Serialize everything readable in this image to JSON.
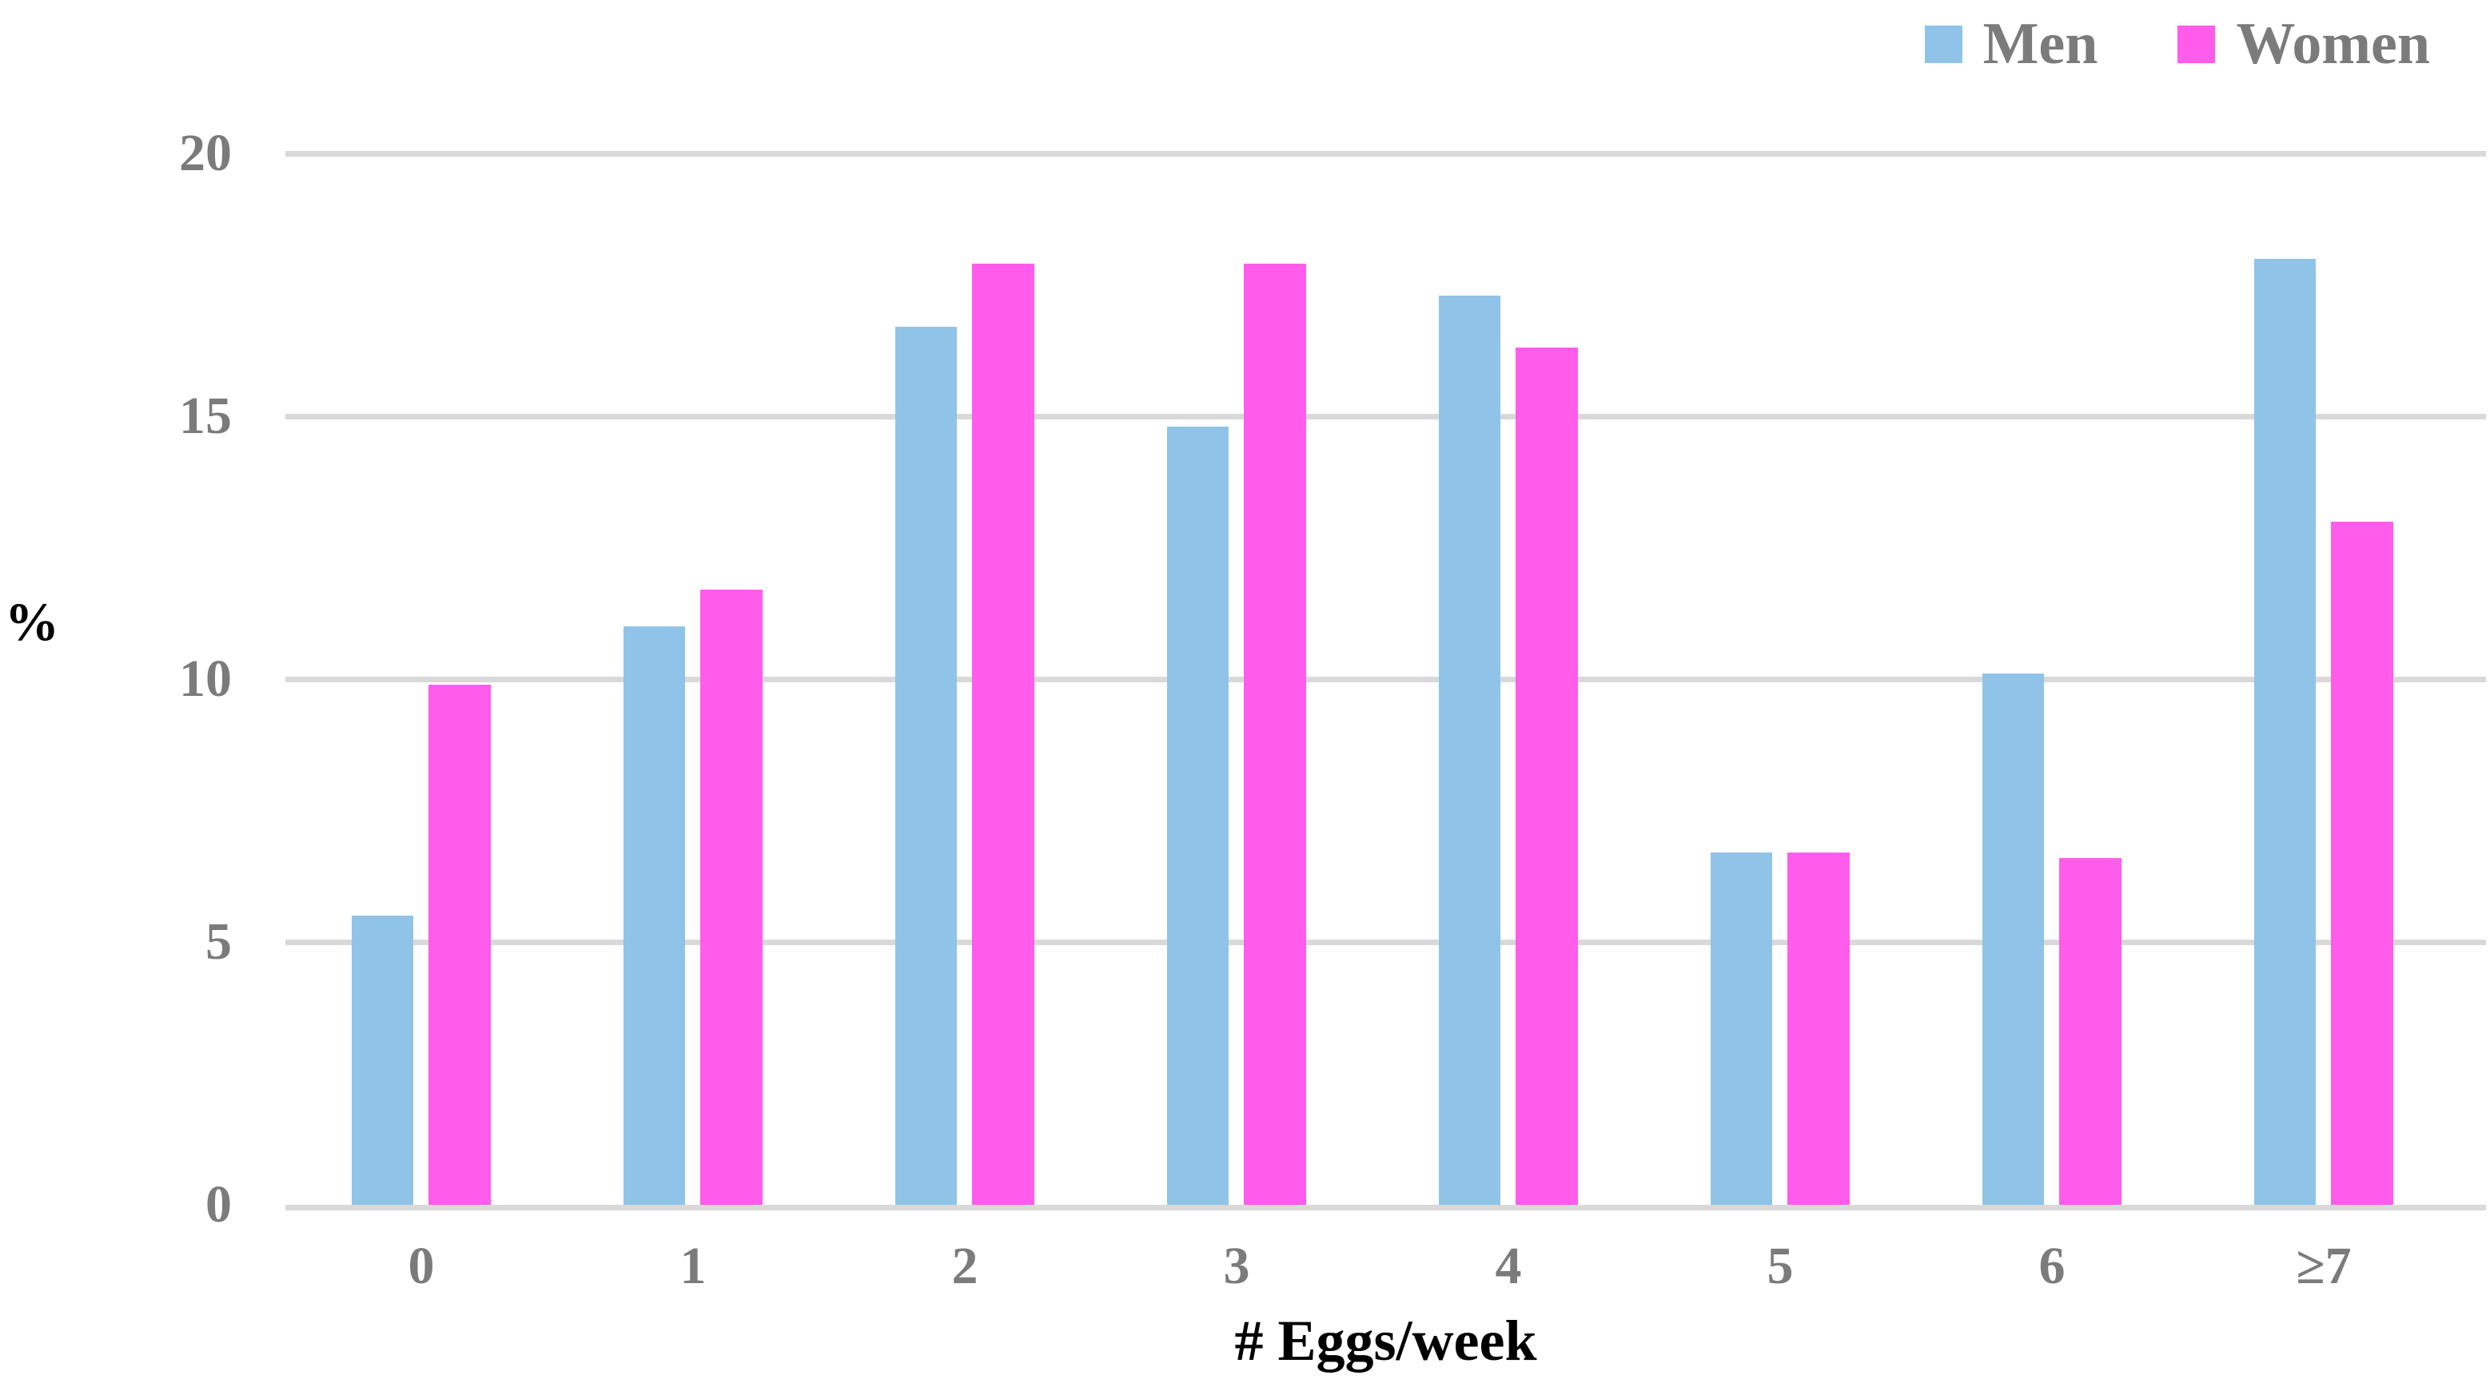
{
  "chart_data": {
    "type": "bar",
    "title": "",
    "xlabel": "# Eggs/week",
    "ylabel": "%",
    "categories": [
      "0",
      "1",
      "2",
      "3",
      "4",
      "5",
      "6",
      "≥7"
    ],
    "series": [
      {
        "name": "Men",
        "color": "#8FC4E8",
        "values": [
          5.5,
          11.0,
          16.7,
          14.8,
          17.3,
          6.7,
          10.1,
          18.0
        ]
      },
      {
        "name": "Women",
        "color": "#FF5CEC",
        "values": [
          9.9,
          11.7,
          17.9,
          17.9,
          16.3,
          6.7,
          6.6,
          13.0
        ]
      }
    ],
    "ylim": [
      0,
      20
    ],
    "yticks": [
      0,
      5,
      10,
      15,
      20
    ],
    "grid": true,
    "gridline_color": "#D9D9D9",
    "tick_label_color": "#7B7B7B",
    "legend_position": "top-right"
  }
}
